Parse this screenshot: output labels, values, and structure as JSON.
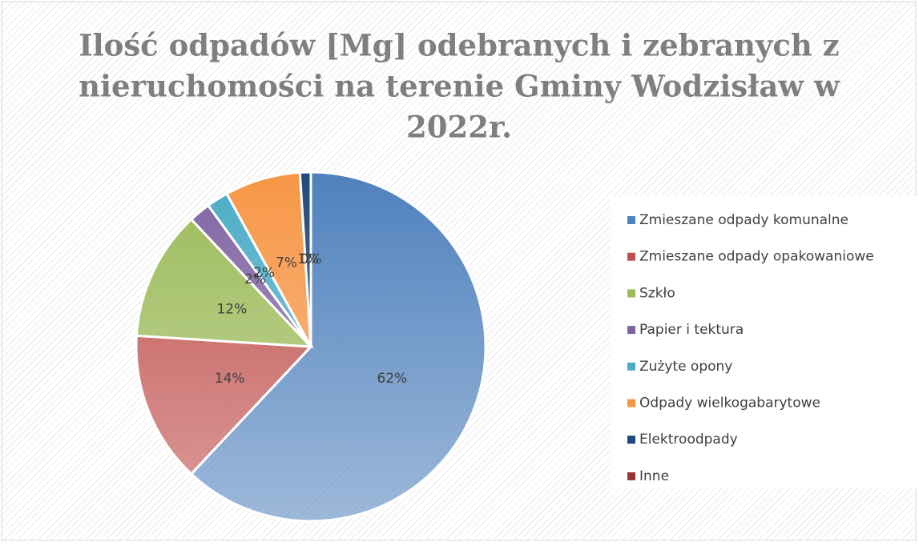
{
  "chart_data": {
    "type": "pie",
    "title": [
      "Ilość odpadów [Mg] odebranych i zebranych z",
      "nieruchomości na terenie Gminy Wodzisław w",
      "2022r."
    ],
    "categories": [
      "Zmieszane odpady komunalne",
      "Zmieszane odpady opakowaniowe",
      "Szkło",
      "Papier i tektura",
      "Zużyte opony",
      "Odpady wielkogabarytowe",
      "Elektroodpady",
      "Inne"
    ],
    "values": [
      62,
      14,
      12,
      2,
      2,
      7,
      1,
      0
    ],
    "value_labels": [
      "62%",
      "14%",
      "12%",
      "2%",
      "2%",
      "7%",
      "1%",
      "0%"
    ],
    "colors": [
      "#4f81bd",
      "#c0504d",
      "#9bbb59",
      "#8064a2",
      "#4bacc6",
      "#f79646",
      "#1f497d",
      "#953735"
    ],
    "legend": "right"
  }
}
